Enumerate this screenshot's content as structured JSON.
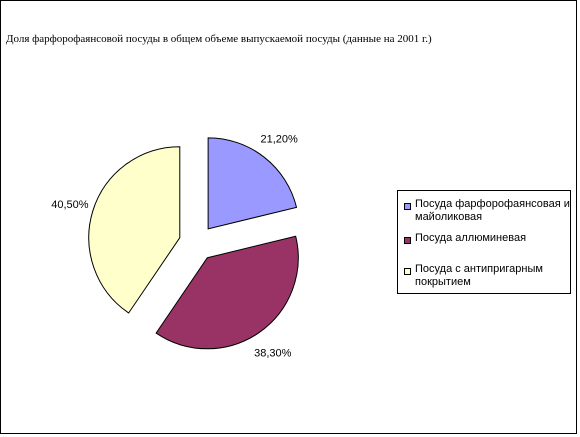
{
  "chart_data": {
    "type": "pie",
    "title": "Доля фарфорофаянсовой посуды в общем объеме выпускаемой посуды (данные на 2001 г.)",
    "slices": [
      {
        "name": "Посуда фарфорофаянсовая и майоликовая",
        "value": 21.2,
        "label": "21,20%",
        "color": "#9999ff"
      },
      {
        "name": "Посуда аллюминевая",
        "value": 38.3,
        "label": "38,30%",
        "color": "#993366"
      },
      {
        "name": "Посуда с антипригарным покрытием",
        "value": 40.5,
        "label": "40,50%",
        "color": "#ffffcc"
      }
    ],
    "exploded": true,
    "legend_position": "right"
  }
}
